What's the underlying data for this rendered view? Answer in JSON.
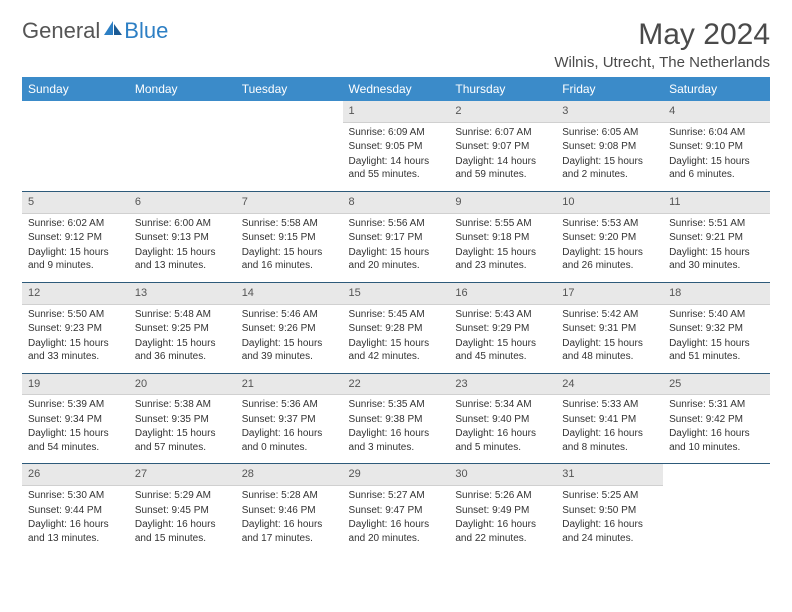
{
  "logo": {
    "text1": "General",
    "text2": "Blue"
  },
  "header": {
    "month": "May 2024",
    "location": "Wilnis, Utrecht, The Netherlands"
  },
  "colors": {
    "header_bg": "#3b8bc9",
    "header_text": "#ffffff",
    "daynum_bg": "#e8e8e8",
    "rule": "#2d5a7a",
    "logo_blue": "#2d7fc4"
  },
  "weekdays": [
    "Sunday",
    "Monday",
    "Tuesday",
    "Wednesday",
    "Thursday",
    "Friday",
    "Saturday"
  ],
  "first_weekday": 3,
  "days": [
    {
      "n": "1",
      "sr": "6:09 AM",
      "ss": "9:05 PM",
      "dl": "14 hours and 55 minutes."
    },
    {
      "n": "2",
      "sr": "6:07 AM",
      "ss": "9:07 PM",
      "dl": "14 hours and 59 minutes."
    },
    {
      "n": "3",
      "sr": "6:05 AM",
      "ss": "9:08 PM",
      "dl": "15 hours and 2 minutes."
    },
    {
      "n": "4",
      "sr": "6:04 AM",
      "ss": "9:10 PM",
      "dl": "15 hours and 6 minutes."
    },
    {
      "n": "5",
      "sr": "6:02 AM",
      "ss": "9:12 PM",
      "dl": "15 hours and 9 minutes."
    },
    {
      "n": "6",
      "sr": "6:00 AM",
      "ss": "9:13 PM",
      "dl": "15 hours and 13 minutes."
    },
    {
      "n": "7",
      "sr": "5:58 AM",
      "ss": "9:15 PM",
      "dl": "15 hours and 16 minutes."
    },
    {
      "n": "8",
      "sr": "5:56 AM",
      "ss": "9:17 PM",
      "dl": "15 hours and 20 minutes."
    },
    {
      "n": "9",
      "sr": "5:55 AM",
      "ss": "9:18 PM",
      "dl": "15 hours and 23 minutes."
    },
    {
      "n": "10",
      "sr": "5:53 AM",
      "ss": "9:20 PM",
      "dl": "15 hours and 26 minutes."
    },
    {
      "n": "11",
      "sr": "5:51 AM",
      "ss": "9:21 PM",
      "dl": "15 hours and 30 minutes."
    },
    {
      "n": "12",
      "sr": "5:50 AM",
      "ss": "9:23 PM",
      "dl": "15 hours and 33 minutes."
    },
    {
      "n": "13",
      "sr": "5:48 AM",
      "ss": "9:25 PM",
      "dl": "15 hours and 36 minutes."
    },
    {
      "n": "14",
      "sr": "5:46 AM",
      "ss": "9:26 PM",
      "dl": "15 hours and 39 minutes."
    },
    {
      "n": "15",
      "sr": "5:45 AM",
      "ss": "9:28 PM",
      "dl": "15 hours and 42 minutes."
    },
    {
      "n": "16",
      "sr": "5:43 AM",
      "ss": "9:29 PM",
      "dl": "15 hours and 45 minutes."
    },
    {
      "n": "17",
      "sr": "5:42 AM",
      "ss": "9:31 PM",
      "dl": "15 hours and 48 minutes."
    },
    {
      "n": "18",
      "sr": "5:40 AM",
      "ss": "9:32 PM",
      "dl": "15 hours and 51 minutes."
    },
    {
      "n": "19",
      "sr": "5:39 AM",
      "ss": "9:34 PM",
      "dl": "15 hours and 54 minutes."
    },
    {
      "n": "20",
      "sr": "5:38 AM",
      "ss": "9:35 PM",
      "dl": "15 hours and 57 minutes."
    },
    {
      "n": "21",
      "sr": "5:36 AM",
      "ss": "9:37 PM",
      "dl": "16 hours and 0 minutes."
    },
    {
      "n": "22",
      "sr": "5:35 AM",
      "ss": "9:38 PM",
      "dl": "16 hours and 3 minutes."
    },
    {
      "n": "23",
      "sr": "5:34 AM",
      "ss": "9:40 PM",
      "dl": "16 hours and 5 minutes."
    },
    {
      "n": "24",
      "sr": "5:33 AM",
      "ss": "9:41 PM",
      "dl": "16 hours and 8 minutes."
    },
    {
      "n": "25",
      "sr": "5:31 AM",
      "ss": "9:42 PM",
      "dl": "16 hours and 10 minutes."
    },
    {
      "n": "26",
      "sr": "5:30 AM",
      "ss": "9:44 PM",
      "dl": "16 hours and 13 minutes."
    },
    {
      "n": "27",
      "sr": "5:29 AM",
      "ss": "9:45 PM",
      "dl": "16 hours and 15 minutes."
    },
    {
      "n": "28",
      "sr": "5:28 AM",
      "ss": "9:46 PM",
      "dl": "16 hours and 17 minutes."
    },
    {
      "n": "29",
      "sr": "5:27 AM",
      "ss": "9:47 PM",
      "dl": "16 hours and 20 minutes."
    },
    {
      "n": "30",
      "sr": "5:26 AM",
      "ss": "9:49 PM",
      "dl": "16 hours and 22 minutes."
    },
    {
      "n": "31",
      "sr": "5:25 AM",
      "ss": "9:50 PM",
      "dl": "16 hours and 24 minutes."
    }
  ],
  "labels": {
    "sunrise": "Sunrise: ",
    "sunset": "Sunset: ",
    "daylight": "Daylight: "
  }
}
